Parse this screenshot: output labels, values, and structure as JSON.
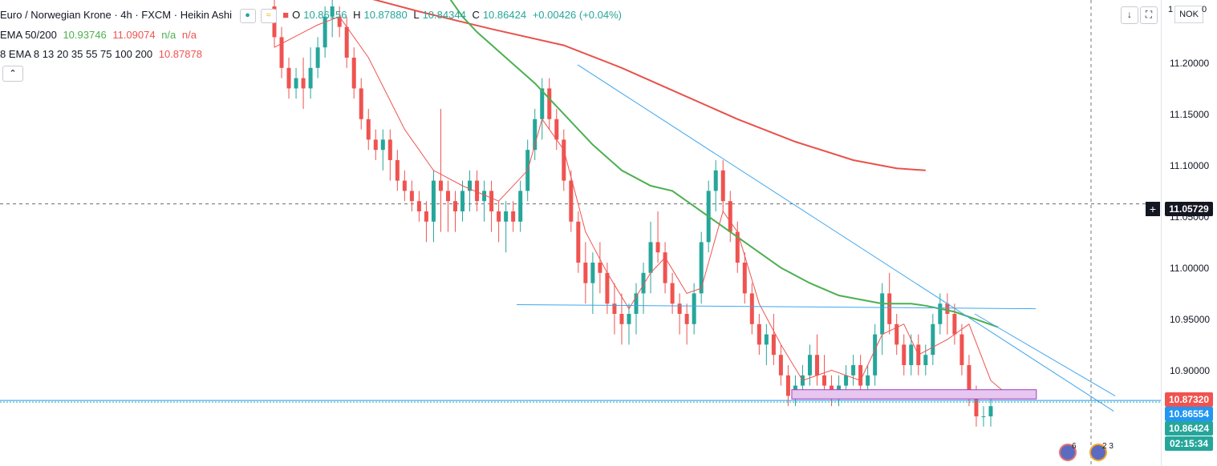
{
  "header": {
    "symbol": "Euro / Norwegian Krone · 4h · FXCM · Heikin Ashi",
    "open_label": "O",
    "open": "10.86156",
    "high_label": "H",
    "high": "10.87880",
    "low_label": "L",
    "low": "10.84344",
    "close_label": "C",
    "close": "10.86424",
    "change": "+0.00426 (+0.04%)",
    "icon_eye": "●",
    "icon_wave": "≈",
    "icon_square": "■"
  },
  "indicators": {
    "ema_name": "EMA 50/200",
    "ema_v1": "10.93746",
    "ema_v2": "11.09074",
    "ema_v3": "n/a",
    "ema_v4": "n/a",
    "multi_name": "8 EMA 8 13 20 35 55 75 100 200",
    "multi_v1": "10.87878",
    "collapse_icon": "⌃"
  },
  "toolbar": {
    "down_icon": "↓",
    "fullscreen_icon": "⛶",
    "currency": "NOK",
    "corner_1": "1",
    "corner_0": "0"
  },
  "axis": {
    "ticks": [
      "11.20000",
      "11.15000",
      "11.10000",
      "11.05000",
      "11.00000",
      "10.95000",
      "10.90000"
    ],
    "crosshair_label": "11.05729",
    "tag_ema8": "10.87320",
    "tag_bid": "10.86554",
    "tag_close": "10.86424",
    "tag_countdown": "02:15:34",
    "crosshair_plus": "+"
  },
  "badges": {
    "b1": "6",
    "b2": "2 3"
  },
  "colors": {
    "bull": "#26a69a",
    "bear": "#ef5350",
    "ema50": "#4caf50",
    "ema200": "#e8524a",
    "ema8": "#ef5350",
    "trend": "#3ea6ef",
    "zone_fill": "#e7c6ef",
    "zone_border": "#a23cc0",
    "tag_red": "#ef5350",
    "tag_blue": "#2196f3",
    "tag_teal": "#26a69a"
  },
  "chart_data": {
    "type": "candlestick",
    "series_style": "Heikin Ashi",
    "ylim": [
      10.805,
      11.25
    ],
    "candles": [
      [
        11.25,
        11.26,
        11.21,
        11.22
      ],
      [
        11.22,
        11.23,
        11.18,
        11.19
      ],
      [
        11.19,
        11.2,
        11.16,
        11.17
      ],
      [
        11.17,
        11.19,
        11.16,
        11.18
      ],
      [
        11.18,
        11.2,
        11.15,
        11.17
      ],
      [
        11.17,
        11.21,
        11.16,
        11.19
      ],
      [
        11.19,
        11.22,
        11.18,
        11.21
      ],
      [
        11.21,
        11.25,
        11.2,
        11.24
      ],
      [
        11.24,
        11.26,
        11.22,
        11.25
      ],
      [
        11.24,
        11.25,
        11.22,
        11.23
      ],
      [
        11.23,
        11.24,
        11.19,
        11.2
      ],
      [
        11.2,
        11.21,
        11.16,
        11.17
      ],
      [
        11.17,
        11.18,
        11.13,
        11.14
      ],
      [
        11.14,
        11.15,
        11.11,
        11.12
      ],
      [
        11.12,
        11.13,
        11.1,
        11.11
      ],
      [
        11.11,
        11.13,
        11.09,
        11.12
      ],
      [
        11.12,
        11.13,
        11.08,
        11.1
      ],
      [
        11.1,
        11.11,
        11.07,
        11.08
      ],
      [
        11.08,
        11.09,
        11.06,
        11.07
      ],
      [
        11.07,
        11.08,
        11.05,
        11.06
      ],
      [
        11.06,
        11.07,
        11.04,
        11.05
      ],
      [
        11.05,
        11.06,
        11.02,
        11.04
      ],
      [
        11.04,
        11.09,
        11.02,
        11.08
      ],
      [
        11.08,
        11.15,
        11.03,
        11.07
      ],
      [
        11.07,
        11.08,
        11.03,
        11.06
      ],
      [
        11.06,
        11.07,
        11.03,
        11.05
      ],
      [
        11.05,
        11.08,
        11.04,
        11.07
      ],
      [
        11.07,
        11.09,
        11.05,
        11.08
      ],
      [
        11.08,
        11.09,
        11.05,
        11.06
      ],
      [
        11.06,
        11.08,
        11.04,
        11.07
      ],
      [
        11.07,
        11.08,
        11.03,
        11.05
      ],
      [
        11.05,
        11.06,
        11.02,
        11.04
      ],
      [
        11.04,
        11.06,
        11.01,
        11.05
      ],
      [
        11.05,
        11.06,
        11.03,
        11.04
      ],
      [
        11.04,
        11.08,
        11.03,
        11.07
      ],
      [
        11.07,
        11.12,
        11.06,
        11.11
      ],
      [
        11.11,
        11.15,
        11.1,
        11.14
      ],
      [
        11.14,
        11.18,
        11.12,
        11.17
      ],
      [
        11.17,
        11.18,
        11.13,
        11.14
      ],
      [
        11.14,
        11.15,
        11.11,
        11.12
      ],
      [
        11.12,
        11.13,
        11.07,
        11.08
      ],
      [
        11.08,
        11.09,
        11.03,
        11.04
      ],
      [
        11.04,
        11.05,
        10.99,
        11.0
      ],
      [
        11.0,
        11.02,
        10.96,
        10.98
      ],
      [
        10.98,
        11.01,
        10.95,
        11.0
      ],
      [
        11.0,
        11.02,
        10.97,
        10.99
      ],
      [
        10.99,
        11.0,
        10.95,
        10.96
      ],
      [
        10.96,
        10.98,
        10.93,
        10.95
      ],
      [
        10.95,
        10.97,
        10.92,
        10.94
      ],
      [
        10.94,
        10.96,
        10.92,
        10.95
      ],
      [
        10.95,
        10.98,
        10.93,
        10.97
      ],
      [
        10.97,
        11.0,
        10.95,
        10.99
      ],
      [
        10.99,
        11.04,
        10.97,
        11.02
      ],
      [
        11.02,
        11.05,
        11.0,
        11.01
      ],
      [
        11.01,
        11.02,
        10.97,
        10.98
      ],
      [
        10.98,
        10.99,
        10.95,
        10.96
      ],
      [
        10.96,
        10.97,
        10.93,
        10.95
      ],
      [
        10.95,
        10.96,
        10.92,
        10.94
      ],
      [
        10.94,
        10.98,
        10.93,
        10.97
      ],
      [
        10.97,
        11.03,
        10.96,
        11.02
      ],
      [
        11.02,
        11.08,
        11.01,
        11.07
      ],
      [
        11.07,
        11.1,
        11.05,
        11.09
      ],
      [
        11.09,
        11.1,
        11.05,
        11.06
      ],
      [
        11.06,
        11.07,
        11.02,
        11.03
      ],
      [
        11.03,
        11.04,
        10.99,
        11.0
      ],
      [
        11.0,
        11.01,
        10.96,
        10.97
      ],
      [
        10.97,
        10.98,
        10.93,
        10.94
      ],
      [
        10.94,
        10.95,
        10.91,
        10.92
      ],
      [
        10.92,
        10.94,
        10.9,
        10.93
      ],
      [
        10.93,
        10.95,
        10.9,
        10.91
      ],
      [
        10.91,
        10.92,
        10.88,
        10.89
      ],
      [
        10.89,
        10.9,
        10.86,
        10.87
      ],
      [
        10.87,
        10.89,
        10.86,
        10.88
      ],
      [
        10.88,
        10.9,
        10.87,
        10.89
      ],
      [
        10.89,
        10.92,
        10.88,
        10.91
      ],
      [
        10.91,
        10.93,
        10.88,
        10.89
      ],
      [
        10.89,
        10.91,
        10.87,
        10.88
      ],
      [
        10.88,
        10.89,
        10.86,
        10.87
      ],
      [
        10.87,
        10.89,
        10.86,
        10.88
      ],
      [
        10.88,
        10.9,
        10.87,
        10.89
      ],
      [
        10.89,
        10.91,
        10.88,
        10.9
      ],
      [
        10.9,
        10.91,
        10.87,
        10.88
      ],
      [
        10.88,
        10.9,
        10.87,
        10.89
      ],
      [
        10.89,
        10.94,
        10.88,
        10.93
      ],
      [
        10.93,
        10.98,
        10.91,
        10.97
      ],
      [
        10.97,
        10.99,
        10.93,
        10.94
      ],
      [
        10.94,
        10.95,
        10.91,
        10.92
      ],
      [
        10.92,
        10.93,
        10.89,
        10.9
      ],
      [
        10.9,
        10.93,
        10.89,
        10.92
      ],
      [
        10.92,
        10.93,
        10.89,
        10.9
      ],
      [
        10.9,
        10.92,
        10.89,
        10.91
      ],
      [
        10.91,
        10.95,
        10.9,
        10.94
      ],
      [
        10.94,
        10.97,
        10.93,
        10.96
      ],
      [
        10.96,
        10.97,
        10.93,
        10.95
      ],
      [
        10.95,
        10.96,
        10.92,
        10.93
      ],
      [
        10.93,
        10.94,
        10.89,
        10.9
      ],
      [
        10.9,
        10.91,
        10.86,
        10.87
      ],
      [
        10.87,
        10.88,
        10.84,
        10.85
      ],
      [
        10.85,
        10.86,
        10.84,
        10.85
      ],
      [
        10.85,
        10.87,
        10.84,
        10.86
      ]
    ],
    "ema50": [
      [
        24,
        11.26
      ],
      [
        26,
        11.24
      ],
      [
        28,
        11.225
      ],
      [
        32,
        11.2
      ],
      [
        36,
        11.175
      ],
      [
        40,
        11.145
      ],
      [
        44,
        11.115
      ],
      [
        48,
        11.09
      ],
      [
        52,
        11.075
      ],
      [
        55,
        11.07
      ],
      [
        58,
        11.055
      ],
      [
        62,
        11.035
      ],
      [
        66,
        11.015
      ],
      [
        70,
        10.995
      ],
      [
        74,
        10.98
      ],
      [
        78,
        10.968
      ],
      [
        84,
        10.96
      ],
      [
        88,
        10.96
      ],
      [
        90,
        10.958
      ],
      [
        94,
        10.952
      ],
      [
        100,
        10.937
      ]
    ],
    "ema200": [
      [
        12,
        11.26
      ],
      [
        20,
        11.245
      ],
      [
        30,
        11.228
      ],
      [
        40,
        11.212
      ],
      [
        48,
        11.19
      ],
      [
        56,
        11.165
      ],
      [
        64,
        11.14
      ],
      [
        72,
        11.118
      ],
      [
        80,
        11.1
      ],
      [
        86,
        11.092
      ],
      [
        90,
        11.09
      ]
    ],
    "ema8": [
      [
        0,
        11.21
      ],
      [
        6,
        11.232
      ],
      [
        9,
        11.24
      ],
      [
        13,
        11.2
      ],
      [
        18,
        11.13
      ],
      [
        22,
        11.09
      ],
      [
        26,
        11.075
      ],
      [
        31,
        11.06
      ],
      [
        35,
        11.09
      ],
      [
        37,
        11.14
      ],
      [
        40,
        11.11
      ],
      [
        43,
        11.03
      ],
      [
        46,
        10.99
      ],
      [
        49,
        10.955
      ],
      [
        52,
        10.99
      ],
      [
        54,
        11.005
      ],
      [
        57,
        10.97
      ],
      [
        59,
        10.975
      ],
      [
        62,
        11.05
      ],
      [
        64,
        11.03
      ],
      [
        67,
        10.96
      ],
      [
        70,
        10.92
      ],
      [
        73,
        10.885
      ],
      [
        77,
        10.895
      ],
      [
        81,
        10.885
      ],
      [
        84,
        10.93
      ],
      [
        87,
        10.94
      ],
      [
        89,
        10.91
      ],
      [
        93,
        10.925
      ],
      [
        96,
        10.94
      ],
      [
        99,
        10.885
      ],
      [
        101,
        10.873
      ]
    ],
    "trendline_upper": [
      [
        10.729,
        11.193
      ],
      [
        18.5,
        10.855
      ]
    ],
    "horizontal_line": [
      [
        8.573,
        10.959
      ],
      [
        14.23,
        10.955
      ]
    ],
    "support_zone": {
      "top": 10.876,
      "bottom": 10.867
    },
    "price_line": 10.8655,
    "crosshair_price": 11.05729
  }
}
